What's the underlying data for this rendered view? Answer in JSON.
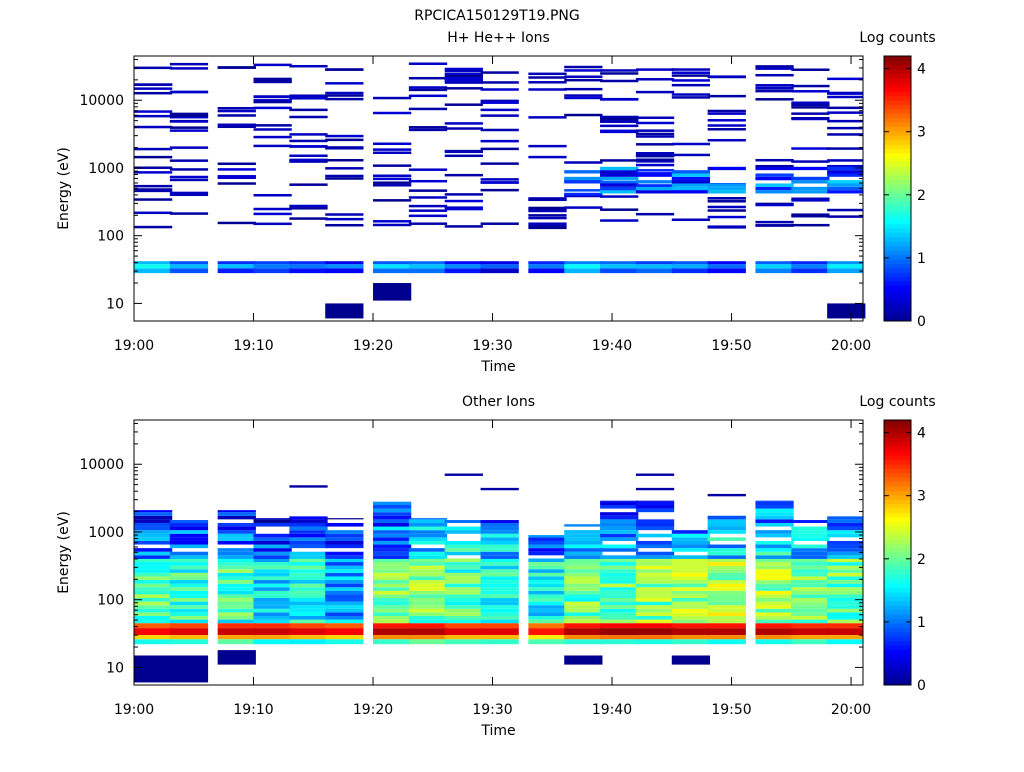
{
  "figure_title": "RPCICA150129T19.PNG",
  "colors": {
    "colormap": [
      "#00008f",
      "#0000ff",
      "#0080ff",
      "#00ffff",
      "#80ff80",
      "#ffff00",
      "#ff8000",
      "#ff0000",
      "#800000"
    ],
    "axis": "#000000",
    "background": "#ffffff"
  },
  "chart_data": [
    {
      "type": "heatmap",
      "title": "H+ He++ Ions",
      "xlabel": "Time",
      "ylabel": "Energy (eV)",
      "colorbar_label": "Log counts",
      "x_ticks": [
        "19:00",
        "19:10",
        "19:20",
        "19:30",
        "19:40",
        "19:50",
        "20:00"
      ],
      "y_ticks": [
        "10",
        "100",
        "1000",
        "10000"
      ],
      "y_scale": "log",
      "x_range": [
        "19:00",
        "20:01"
      ],
      "y_range": [
        5.5,
        45000
      ],
      "colorbar_range": [
        0,
        4.2
      ],
      "colorbar_ticks": [
        "0",
        "1",
        "2",
        "3",
        "4"
      ],
      "time_bins": [
        "19:00",
        "19:03",
        "19:07",
        "19:10",
        "19:13",
        "19:16",
        "19:20",
        "19:23",
        "19:26",
        "19:29",
        "19:33",
        "19:36",
        "19:39",
        "19:42",
        "19:45",
        "19:48",
        "19:52",
        "19:55",
        "19:58"
      ],
      "energy_bins": [
        34
      ],
      "dense_band": {
        "energy": [
          28,
          42
        ],
        "levels": [
          1.4,
          1.0,
          0.9,
          0.8,
          0.8,
          0.7,
          1.1,
          1.0,
          0.7,
          0.5,
          0.7,
          1.3,
          1.1,
          1.0,
          0.9,
          0.8,
          1.2,
          0.8,
          1.2
        ]
      },
      "sparse_counts": "sparse single-count lines (~0 to 1 log counts) from 130 eV to 35000 eV; moderate counts (~0.5-1.5) between 400 and 1000 eV after 19:36",
      "low_energy_blocks": [
        {
          "t": "19:16",
          "energy": [
            6,
            10
          ],
          "level": 0.0
        },
        {
          "t": "19:20",
          "energy": [
            11,
            20
          ],
          "level": 0.0
        },
        {
          "t": "19:58",
          "energy": [
            6,
            10
          ],
          "level": 0.0
        }
      ]
    },
    {
      "type": "heatmap",
      "title": "Other Ions",
      "xlabel": "Time",
      "ylabel": "Energy (eV)",
      "colorbar_label": "Log counts",
      "x_ticks": [
        "19:00",
        "19:10",
        "19:20",
        "19:30",
        "19:40",
        "19:50",
        "20:00"
      ],
      "y_ticks": [
        "10",
        "100",
        "1000",
        "10000"
      ],
      "y_scale": "log",
      "x_range": [
        "19:00",
        "20:01"
      ],
      "y_range": [
        5.5,
        45000
      ],
      "colorbar_range": [
        0,
        4.2
      ],
      "colorbar_ticks": [
        "0",
        "1",
        "2",
        "3",
        "4"
      ],
      "time_bins": [
        "19:00",
        "19:03",
        "19:07",
        "19:10",
        "19:13",
        "19:16",
        "19:20",
        "19:23",
        "19:26",
        "19:29",
        "19:33",
        "19:36",
        "19:39",
        "19:42",
        "19:45",
        "19:48",
        "19:52",
        "19:55",
        "19:58"
      ],
      "top_energy_per_bin": [
        2100,
        1500,
        2100,
        1600,
        1700,
        1600,
        2800,
        1600,
        1500,
        1500,
        900,
        1300,
        2900,
        2900,
        1100,
        1800,
        2900,
        1500,
        1700
      ],
      "peak_band": {
        "energy": [
          26,
          45
        ],
        "levels": [
          3.7,
          3.8,
          3.9,
          3.9,
          3.8,
          3.7,
          4.0,
          4.0,
          3.8,
          3.8,
          3.6,
          4.0,
          4.1,
          4.1,
          4.0,
          4.0,
          4.0,
          3.9,
          3.9
        ]
      },
      "mid_band": {
        "energy": [
          45,
          400
        ],
        "levels": [
          1.9,
          1.8,
          1.8,
          1.5,
          1.6,
          1.2,
          2.1,
          2.1,
          1.9,
          1.7,
          1.6,
          2.0,
          2.0,
          2.1,
          2.2,
          2.3,
          2.2,
          2.0,
          2.0
        ]
      },
      "upper_band": {
        "energy": [
          400,
          2000
        ],
        "levels": [
          1.0,
          0.9,
          0.9,
          0.8,
          0.9,
          0.7,
          1.1,
          1.4,
          1.5,
          1.3,
          1.0,
          1.2,
          1.2,
          1.1,
          1.1,
          1.4,
          1.5,
          1.4,
          1.2
        ]
      },
      "high_energy_traces": [
        {
          "t": "19:13",
          "energy": 4700
        },
        {
          "t": "19:26",
          "energy": 7000
        },
        {
          "t": "19:29",
          "energy": 4300
        },
        {
          "t": "19:42",
          "energy": 7000
        },
        {
          "t": "19:42",
          "energy": 4300
        },
        {
          "t": "19:48",
          "energy": 3500
        }
      ],
      "low_energy_blocks": [
        {
          "t": "19:00",
          "energy": [
            6,
            15
          ],
          "level": 0.0
        },
        {
          "t": "19:03",
          "energy": [
            6,
            15
          ],
          "level": 0.0
        },
        {
          "t": "19:07",
          "energy": [
            11,
            18
          ],
          "level": 0.0
        },
        {
          "t": "19:36",
          "energy": [
            11,
            15
          ],
          "level": 0.0
        },
        {
          "t": "19:45",
          "energy": [
            11,
            15
          ],
          "level": 0.0
        }
      ]
    }
  ]
}
